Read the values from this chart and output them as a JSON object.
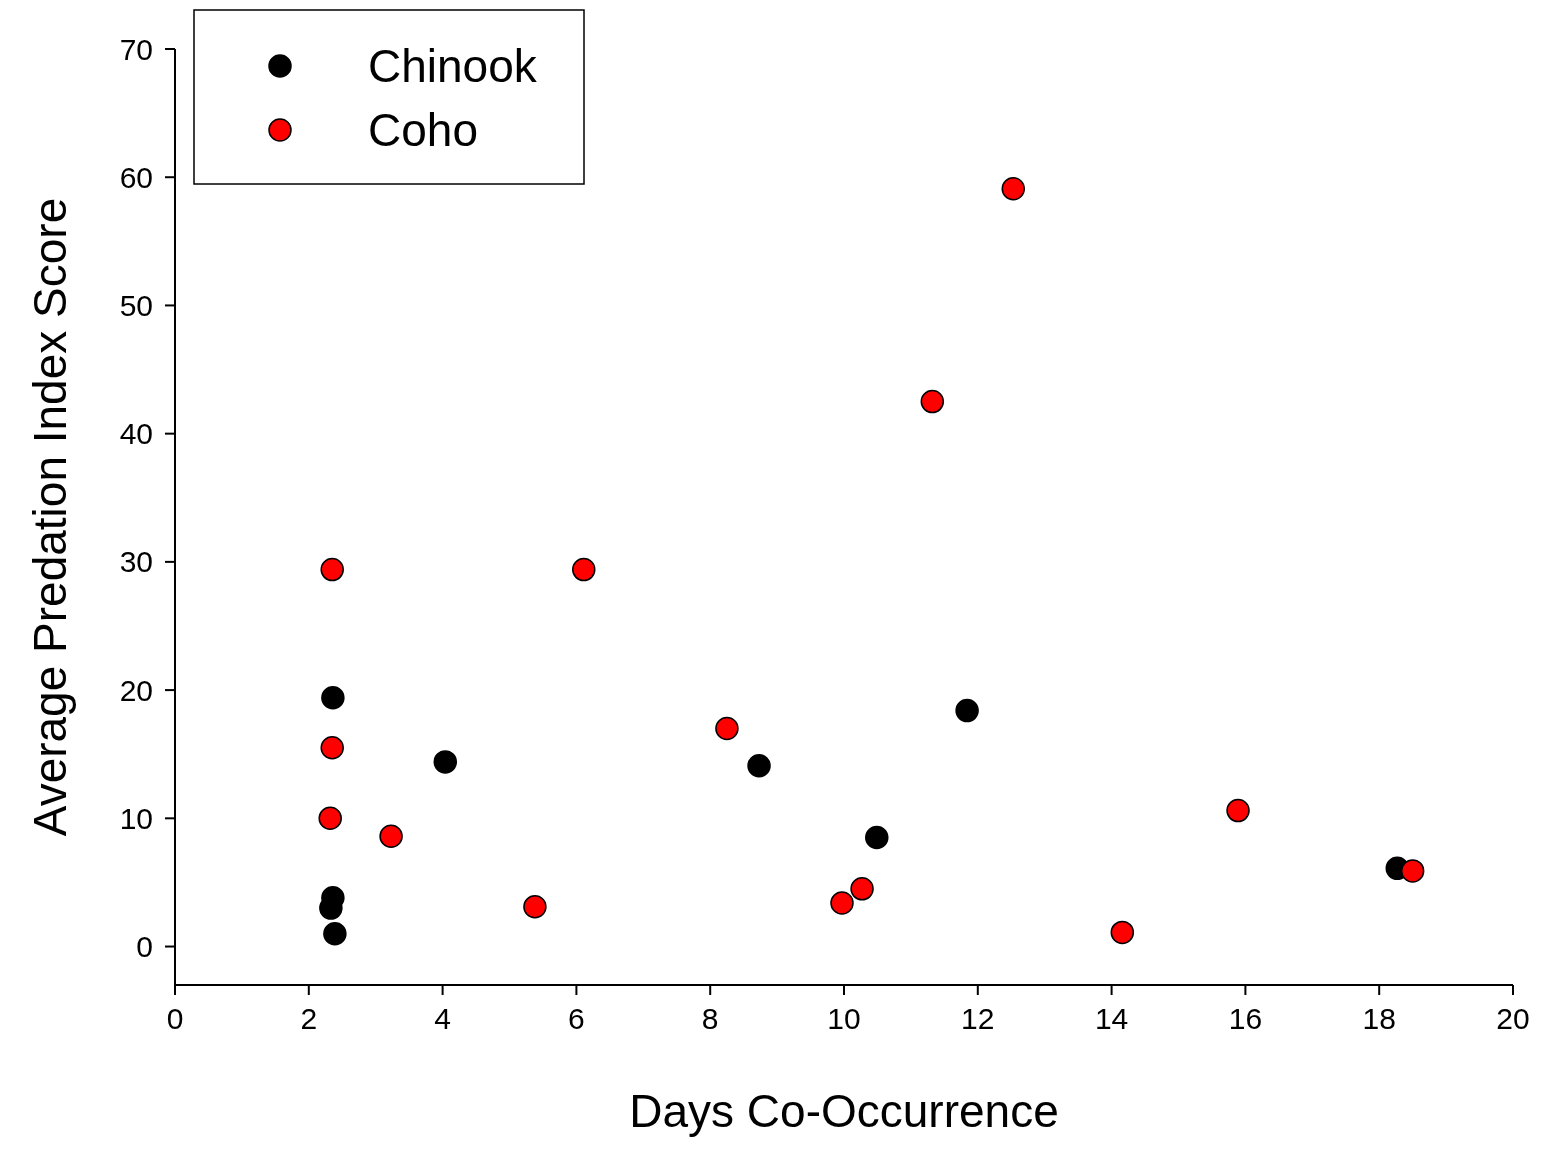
{
  "chart_data": {
    "type": "scatter",
    "xlabel": "Days Co-Occurrence",
    "ylabel": "Average Predation Index Score",
    "xlim": [
      0,
      20
    ],
    "xticks": [
      0,
      2,
      4,
      6,
      8,
      10,
      12,
      14,
      16,
      18,
      20
    ],
    "ylim": [
      -3,
      70
    ],
    "yticks": [
      0,
      10,
      20,
      30,
      40,
      50,
      60,
      70
    ],
    "grid": false,
    "legend": "top left",
    "marker": "circle",
    "series": [
      {
        "name": "Chinook",
        "color": "#000000",
        "x": [
          2.36,
          4.04,
          2.36,
          2.33,
          2.39,
          8.73,
          10.49,
          11.84,
          18.27
        ],
        "values": [
          19.4,
          14.4,
          3.8,
          3.0,
          1.0,
          14.1,
          8.5,
          18.4,
          6.1
        ]
      },
      {
        "name": "Coho",
        "color": "#ff0000",
        "x": [
          2.35,
          2.35,
          2.32,
          3.23,
          5.38,
          6.11,
          8.25,
          9.97,
          10.27,
          11.32,
          12.53,
          14.16,
          15.89,
          18.5
        ],
        "values": [
          29.4,
          15.5,
          10.0,
          8.6,
          3.1,
          29.4,
          17.0,
          3.4,
          4.5,
          42.5,
          59.1,
          1.1,
          10.6,
          5.9
        ]
      }
    ]
  }
}
